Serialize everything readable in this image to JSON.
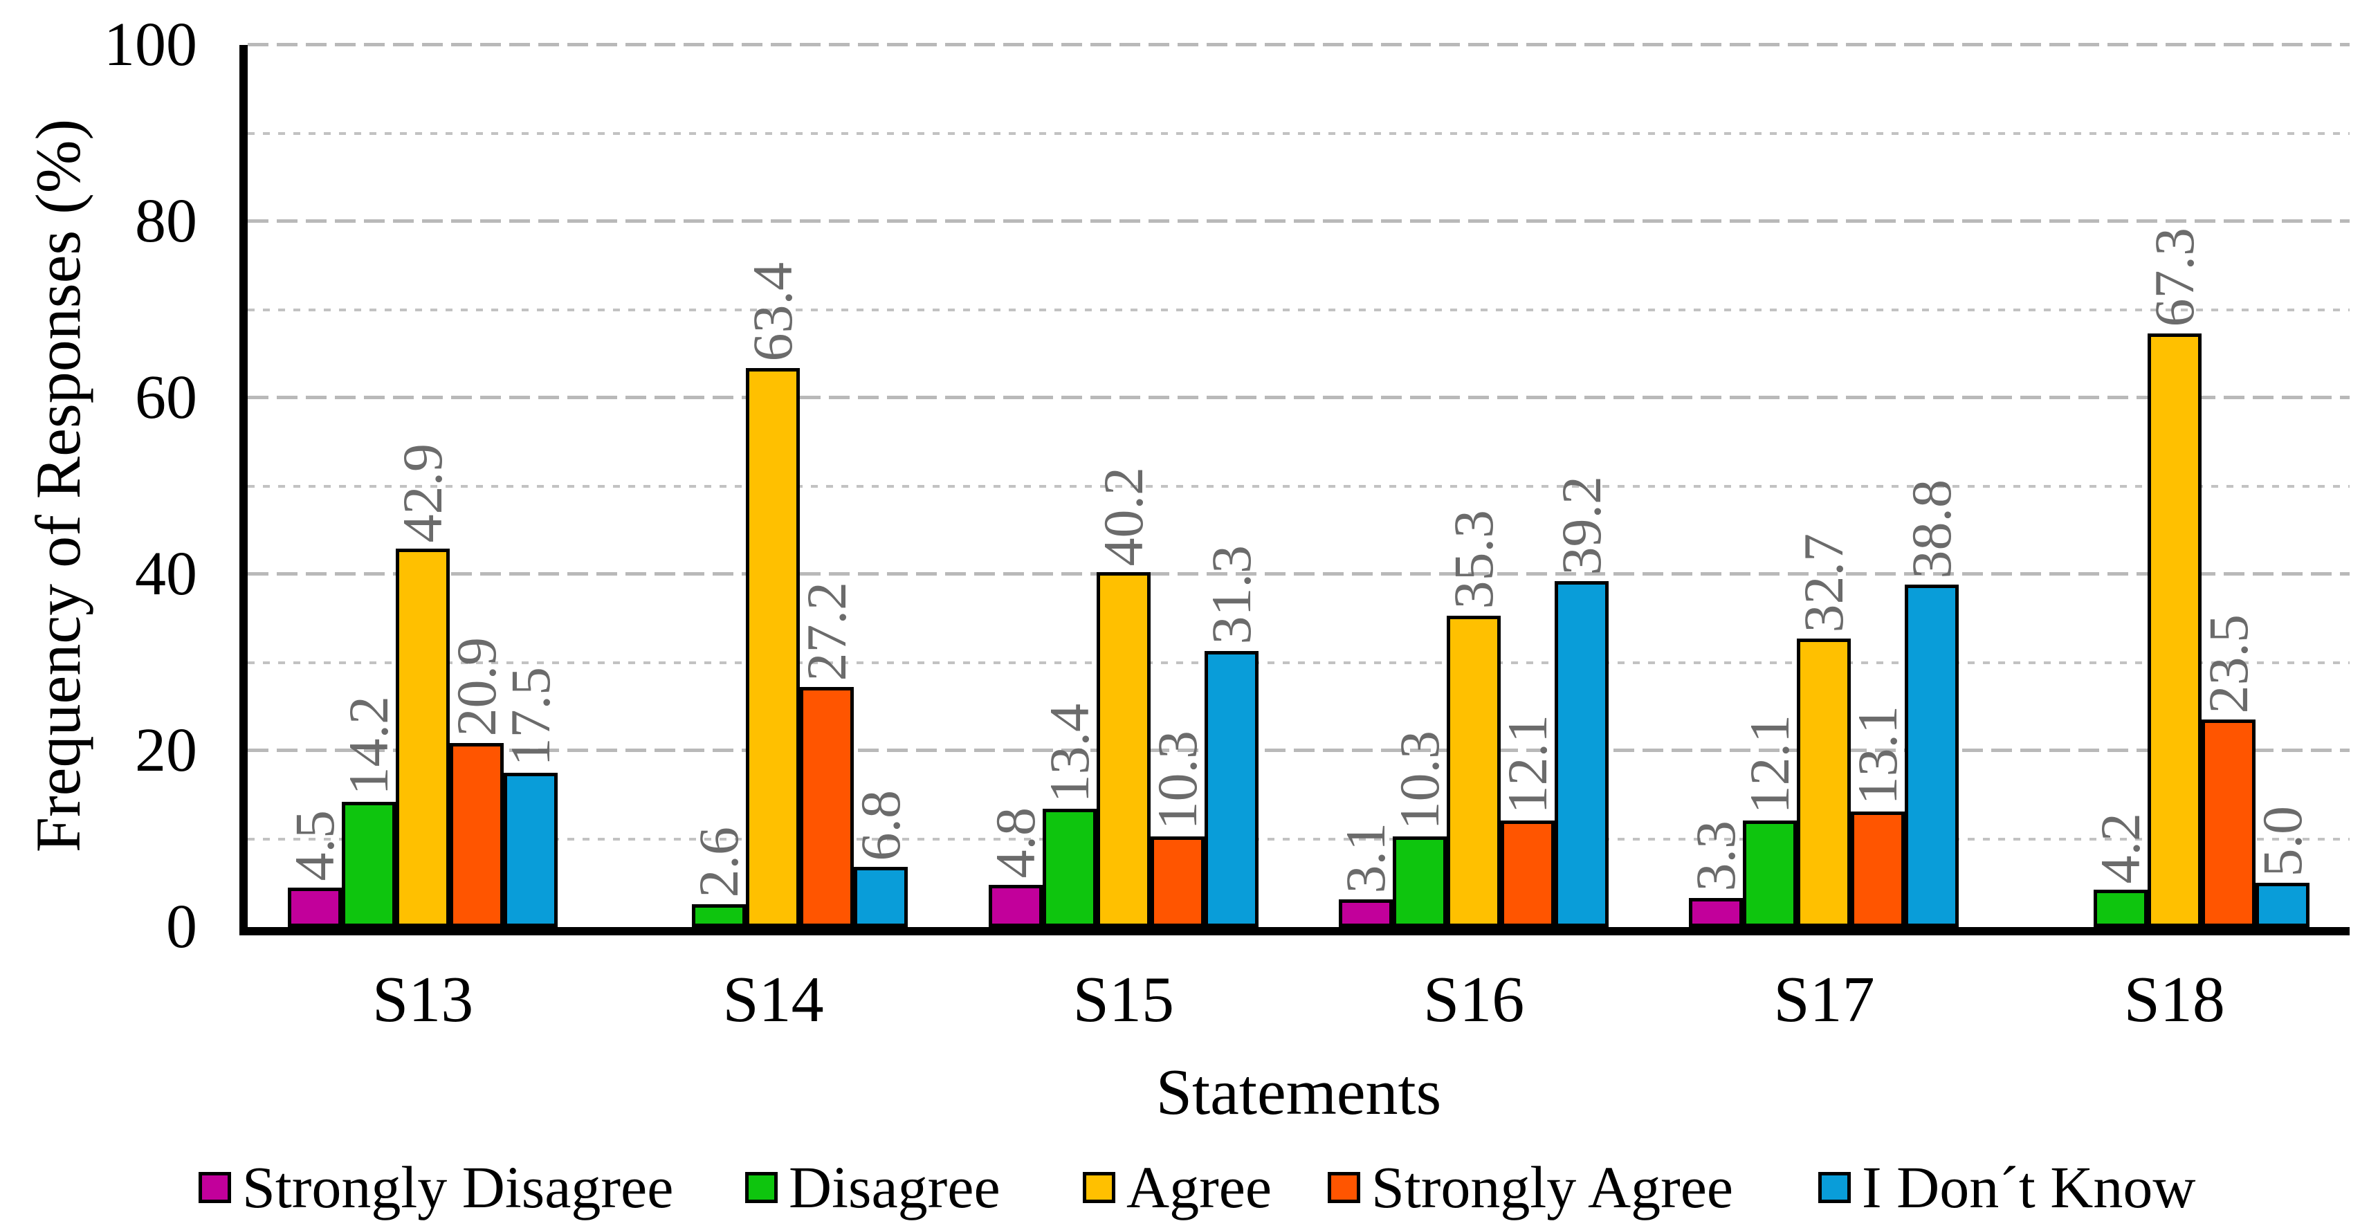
{
  "chart_data": {
    "type": "bar",
    "title": "",
    "xlabel": "Statements",
    "ylabel": "Frequency of Responses (%)",
    "categories": [
      "S13",
      "S14",
      "S15",
      "S16",
      "S17",
      "S18"
    ],
    "series": [
      {
        "name": "Strongly Disagree",
        "color": "#c2009b",
        "values": [
          4.5,
          0,
          4.8,
          3.1,
          3.3,
          0
        ]
      },
      {
        "name": "Disagree",
        "color": "#0ec50e",
        "values": [
          14.2,
          2.6,
          13.4,
          10.3,
          12.1,
          4.2
        ]
      },
      {
        "name": "Agree",
        "color": "#ffc000",
        "values": [
          42.9,
          63.4,
          40.2,
          35.3,
          32.7,
          67.3
        ]
      },
      {
        "name": "Strongly Agree",
        "color": "#ff5500",
        "values": [
          20.9,
          27.2,
          10.3,
          12.1,
          13.1,
          23.5
        ]
      },
      {
        "name": "I Don´t Know",
        "color": "#099dd9",
        "values": [
          17.5,
          6.8,
          31.3,
          39.2,
          38.8,
          5.0
        ]
      }
    ],
    "ylim": [
      0,
      100
    ],
    "yticks": [
      0,
      20,
      40,
      60,
      80,
      100
    ],
    "minor_gridlines": [
      10,
      30,
      50,
      70,
      90
    ],
    "grid": "horizontal: major dashed, minor dotted",
    "legend_position": "bottom",
    "value_labels": "one decimal, rotated 90°, gray, zero values omitted",
    "value_label_color": "#6b6b6b",
    "gridline_color": "#b9b9b9",
    "axis_color": "#000000"
  }
}
